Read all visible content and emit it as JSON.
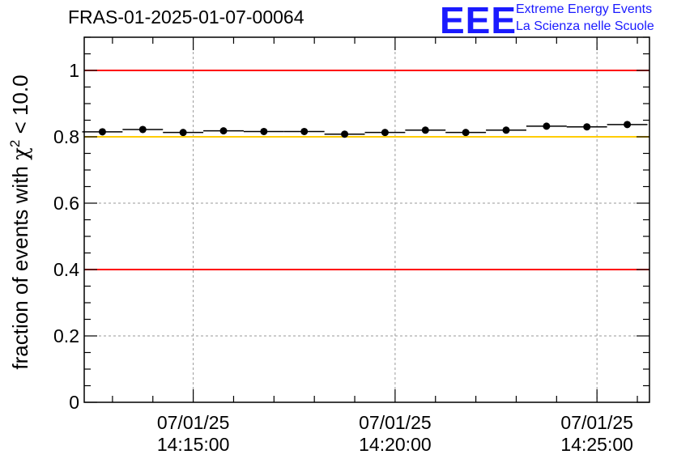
{
  "chart_data": {
    "type": "scatter",
    "title": "FRAS-01-2025-01-07-00064",
    "ylabel_prefix": "fraction of events with ",
    "ylabel_symbol": "χ",
    "ylabel_exponent": "2",
    "ylabel_suffix": " < 10.0",
    "xlabel": "",
    "ylim": [
      0,
      1.1
    ],
    "yticks": [
      0,
      0.2,
      0.4,
      0.6,
      0.8,
      1
    ],
    "ytick_labels": [
      "0",
      "0.2",
      "0.4",
      "0.6",
      "0.8",
      "1"
    ],
    "xlim_minutes": [
      -2.7,
      11.3
    ],
    "xticks_minutes": [
      0,
      5,
      10
    ],
    "xtick_labels": [
      {
        "date": "07/01/25",
        "time": "14:15:00"
      },
      {
        "date": "07/01/25",
        "time": "14:20:00"
      },
      {
        "date": "07/01/25",
        "time": "14:25:00"
      }
    ],
    "bin_halfwidth_minutes": 0.5,
    "x_minutes": [
      -2.25,
      -1.25,
      -0.25,
      0.75,
      1.75,
      2.75,
      3.75,
      4.75,
      5.75,
      6.75,
      7.75,
      8.75,
      9.75,
      10.75
    ],
    "values": [
      0.815,
      0.822,
      0.813,
      0.818,
      0.816,
      0.816,
      0.808,
      0.813,
      0.82,
      0.813,
      0.82,
      0.832,
      0.83,
      0.837
    ],
    "reference_lines": [
      {
        "value": 1.0,
        "color": "#ff0000"
      },
      {
        "value": 0.4,
        "color": "#ff0000"
      },
      {
        "value": 0.8,
        "color": "#ffcc00"
      }
    ],
    "grid": true
  },
  "logo": {
    "mark": "EEE",
    "line1": "Extreme Energy Events",
    "line2": "La Scienza nelle Scuole"
  },
  "colors": {
    "logo": "#1a1aff",
    "grid": "#999999",
    "marker": "#000000"
  }
}
